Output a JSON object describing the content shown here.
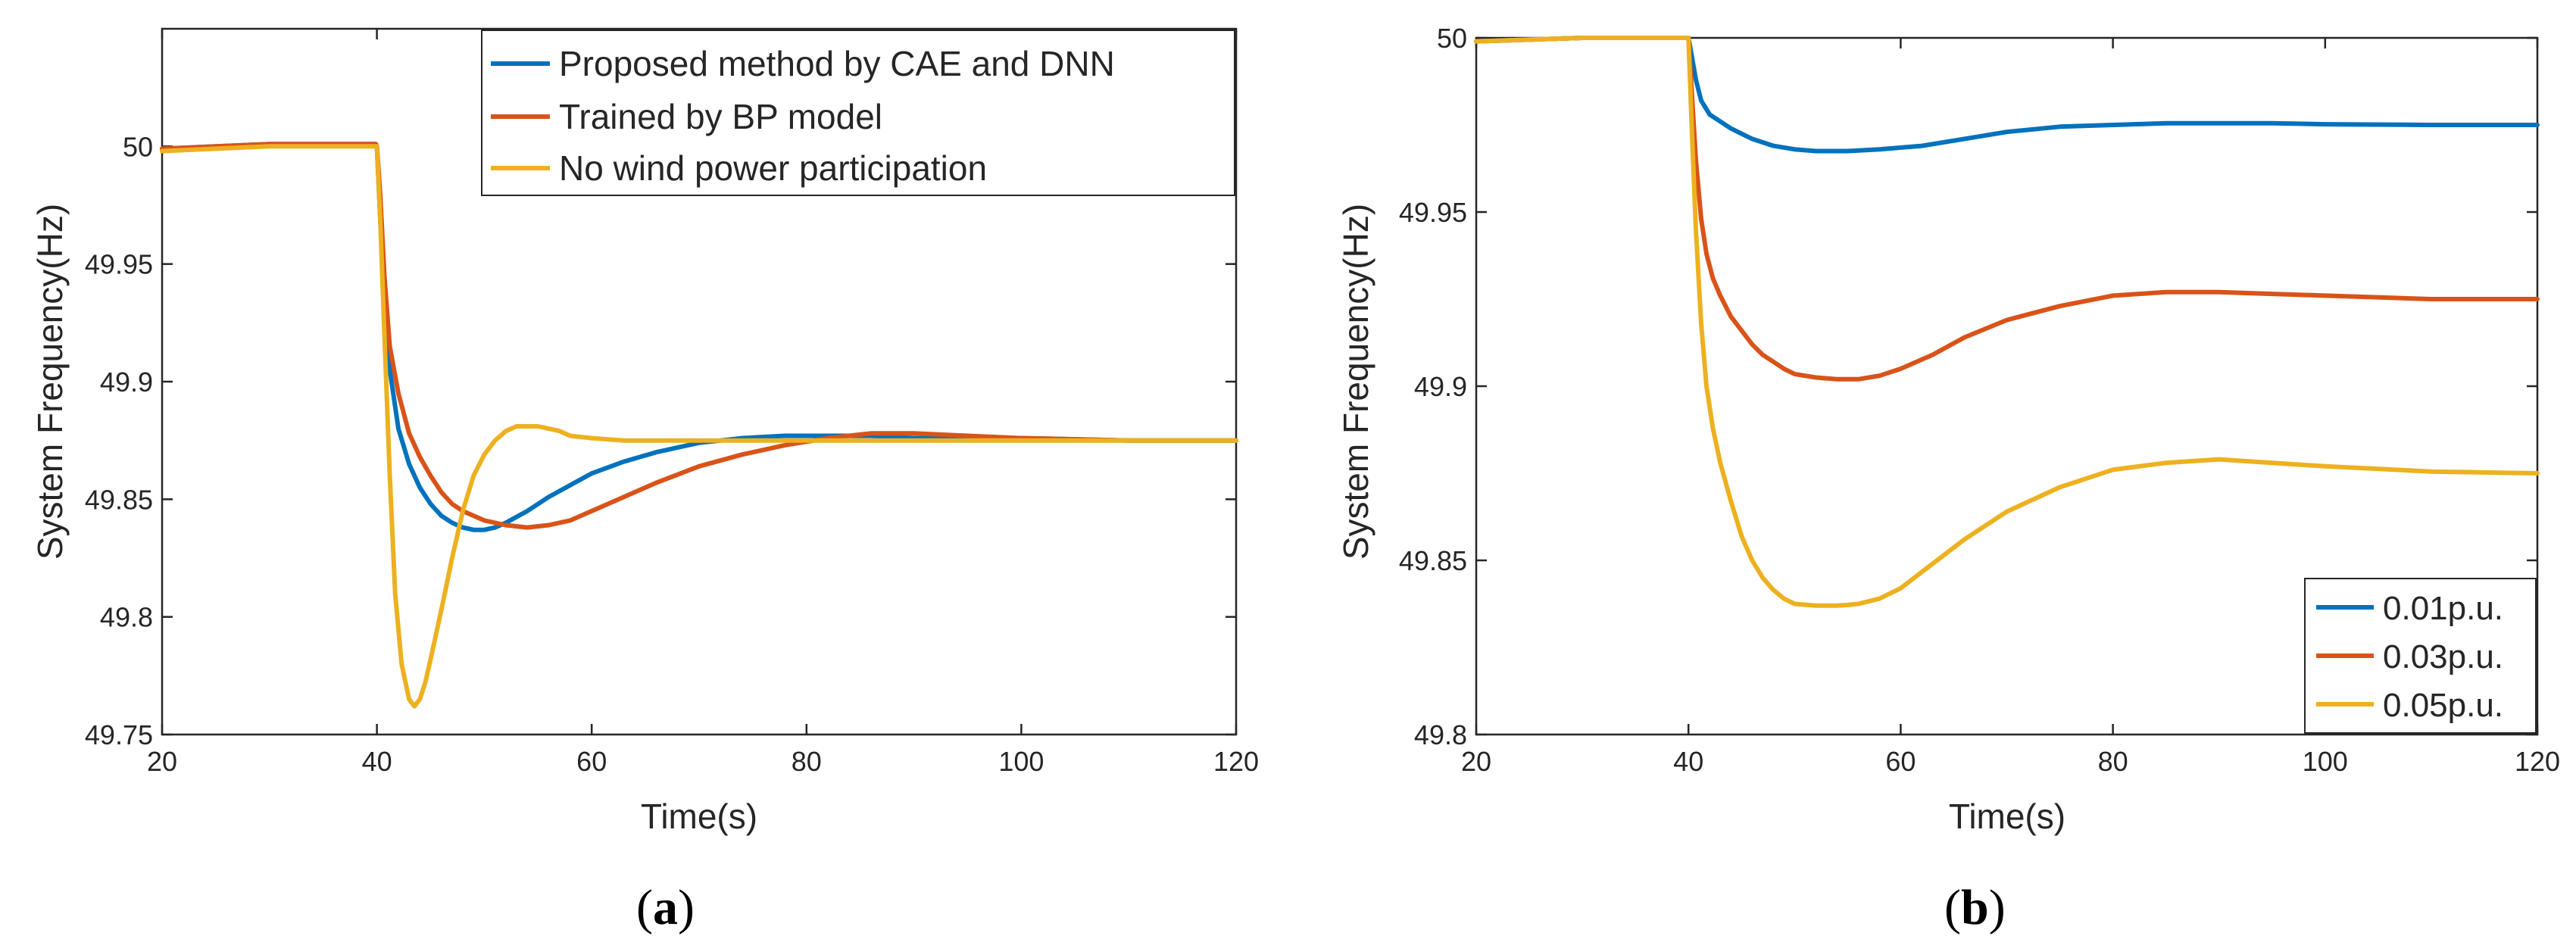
{
  "chart_data": [
    {
      "type": "line",
      "panel_label": "(a)",
      "panel": {
        "open": "(",
        "letter": "a",
        "close": ")"
      },
      "xlabel": "Time(s)",
      "ylabel": "System Frequency(Hz)",
      "xlim": [
        20,
        120
      ],
      "ylim": [
        49.75,
        50.05
      ],
      "xticks": [
        20,
        40,
        60,
        80,
        100,
        120
      ],
      "yticks": [
        49.75,
        49.8,
        49.85,
        49.9,
        49.95,
        50
      ],
      "xtick_labels": [
        "20",
        "40",
        "60",
        "80",
        "100",
        "120"
      ],
      "ytick_labels": [
        "49.75",
        "49.8",
        "49.85",
        "49.9",
        "49.95",
        "50"
      ],
      "legend_position": "top-right",
      "series": [
        {
          "name": "Proposed method by CAE and DNN",
          "color": "#0072BD",
          "x": [
            20,
            30,
            39.9,
            40,
            40.3,
            40.7,
            41.2,
            42,
            43,
            44,
            45,
            46,
            47,
            48,
            49,
            50,
            51,
            52,
            54,
            56,
            58,
            60,
            63,
            66,
            70,
            74,
            78,
            82,
            86,
            90,
            95,
            100,
            110,
            120
          ],
          "y": [
            49.999,
            50.001,
            50.001,
            50.0,
            49.97,
            49.935,
            49.905,
            49.88,
            49.865,
            49.855,
            49.848,
            49.843,
            49.84,
            49.838,
            49.837,
            49.837,
            49.838,
            49.84,
            49.845,
            49.851,
            49.856,
            49.861,
            49.866,
            49.87,
            49.874,
            49.876,
            49.877,
            49.877,
            49.877,
            49.876,
            49.876,
            49.876,
            49.875,
            49.875
          ]
        },
        {
          "name": "Trained by BP model",
          "color": "#D95319",
          "x": [
            20,
            30,
            39.9,
            40,
            40.3,
            40.7,
            41.2,
            42,
            43,
            44,
            45,
            46,
            47,
            48,
            50,
            52,
            54,
            56,
            58,
            60,
            63,
            66,
            70,
            74,
            78,
            82,
            86,
            90,
            95,
            100,
            110,
            120
          ],
          "y": [
            49.999,
            50.001,
            50.001,
            50.0,
            49.98,
            49.945,
            49.915,
            49.895,
            49.878,
            49.868,
            49.86,
            49.853,
            49.848,
            49.845,
            49.841,
            49.839,
            49.838,
            49.839,
            49.841,
            49.845,
            49.851,
            49.857,
            49.864,
            49.869,
            49.873,
            49.876,
            49.878,
            49.878,
            49.877,
            49.876,
            49.875,
            49.875
          ]
        },
        {
          "name": "No wind power participation",
          "color": "#EDB120",
          "x": [
            20,
            30,
            39.9,
            40,
            40.3,
            40.7,
            41.2,
            41.7,
            42.3,
            43,
            43.5,
            44,
            44.5,
            45,
            46,
            47,
            48,
            49,
            50,
            51,
            52,
            53,
            54,
            55,
            56,
            57,
            58,
            60,
            63,
            66,
            70,
            80,
            90,
            100,
            110,
            120
          ],
          "y": [
            49.998,
            50.0,
            50.0,
            50.0,
            49.97,
            49.92,
            49.86,
            49.81,
            49.78,
            49.765,
            49.762,
            49.765,
            49.772,
            49.782,
            49.803,
            49.825,
            49.845,
            49.86,
            49.869,
            49.875,
            49.879,
            49.881,
            49.881,
            49.881,
            49.88,
            49.879,
            49.877,
            49.876,
            49.875,
            49.875,
            49.875,
            49.875,
            49.875,
            49.875,
            49.875,
            49.875
          ]
        }
      ]
    },
    {
      "type": "line",
      "panel_label": "(b)",
      "panel": {
        "open": "(",
        "letter": "b",
        "close": ")"
      },
      "xlabel": "Time(s)",
      "ylabel": "System Frequency(Hz)",
      "xlim": [
        20,
        120
      ],
      "ylim": [
        49.8,
        50.0
      ],
      "xticks": [
        20,
        40,
        60,
        80,
        100,
        120
      ],
      "yticks": [
        49.8,
        49.85,
        49.9,
        49.95,
        50
      ],
      "xtick_labels": [
        "20",
        "40",
        "60",
        "80",
        "100",
        "120"
      ],
      "ytick_labels": [
        "49.8",
        "49.85",
        "49.9",
        "49.95",
        "50"
      ],
      "legend_position": "bottom-right",
      "series": [
        {
          "name": "0.01p.u.",
          "color": "#0072BD",
          "x": [
            20,
            30,
            39.9,
            40,
            40.3,
            40.7,
            41.2,
            42,
            43,
            44,
            46,
            48,
            50,
            52,
            55,
            58,
            62,
            66,
            70,
            75,
            80,
            85,
            90,
            95,
            100,
            110,
            120
          ],
          "y": [
            49.999,
            50.0,
            50.0,
            50.0,
            49.995,
            49.988,
            49.982,
            49.978,
            49.976,
            49.974,
            49.971,
            49.969,
            49.968,
            49.9675,
            49.9675,
            49.968,
            49.969,
            49.971,
            49.973,
            49.9745,
            49.975,
            49.9755,
            49.9755,
            49.9755,
            49.9752,
            49.975,
            49.975
          ]
        },
        {
          "name": "0.03p.u.",
          "color": "#D95319",
          "x": [
            20,
            30,
            39.9,
            40,
            40.3,
            40.7,
            41.2,
            41.7,
            42.3,
            43,
            44,
            45,
            46,
            47,
            48,
            49,
            50,
            52,
            54,
            55,
            56,
            58,
            60,
            63,
            66,
            70,
            75,
            80,
            85,
            90,
            95,
            100,
            110,
            120
          ],
          "y": [
            49.999,
            50.0,
            50.0,
            50.0,
            49.985,
            49.965,
            49.948,
            49.938,
            49.931,
            49.926,
            49.92,
            49.916,
            49.912,
            49.909,
            49.907,
            49.905,
            49.9035,
            49.9025,
            49.902,
            49.902,
            49.902,
            49.903,
            49.905,
            49.909,
            49.914,
            49.919,
            49.923,
            49.926,
            49.927,
            49.927,
            49.9265,
            49.926,
            49.925,
            49.925
          ]
        },
        {
          "name": "0.05p.u.",
          "color": "#EDB120",
          "x": [
            20,
            30,
            39.9,
            40,
            40.3,
            40.7,
            41.2,
            41.7,
            42.3,
            43,
            44,
            45,
            46,
            47,
            48,
            49,
            50,
            52,
            54,
            55,
            56,
            58,
            60,
            63,
            66,
            70,
            75,
            80,
            85,
            90,
            95,
            100,
            110,
            120
          ],
          "y": [
            49.999,
            50.0,
            50.0,
            50.0,
            49.975,
            49.945,
            49.918,
            49.9,
            49.888,
            49.878,
            49.867,
            49.857,
            49.85,
            49.845,
            49.8415,
            49.839,
            49.8375,
            49.837,
            49.837,
            49.8372,
            49.8375,
            49.839,
            49.842,
            49.849,
            49.856,
            49.864,
            49.871,
            49.876,
            49.878,
            49.879,
            49.878,
            49.877,
            49.8755,
            49.875
          ]
        }
      ]
    }
  ]
}
